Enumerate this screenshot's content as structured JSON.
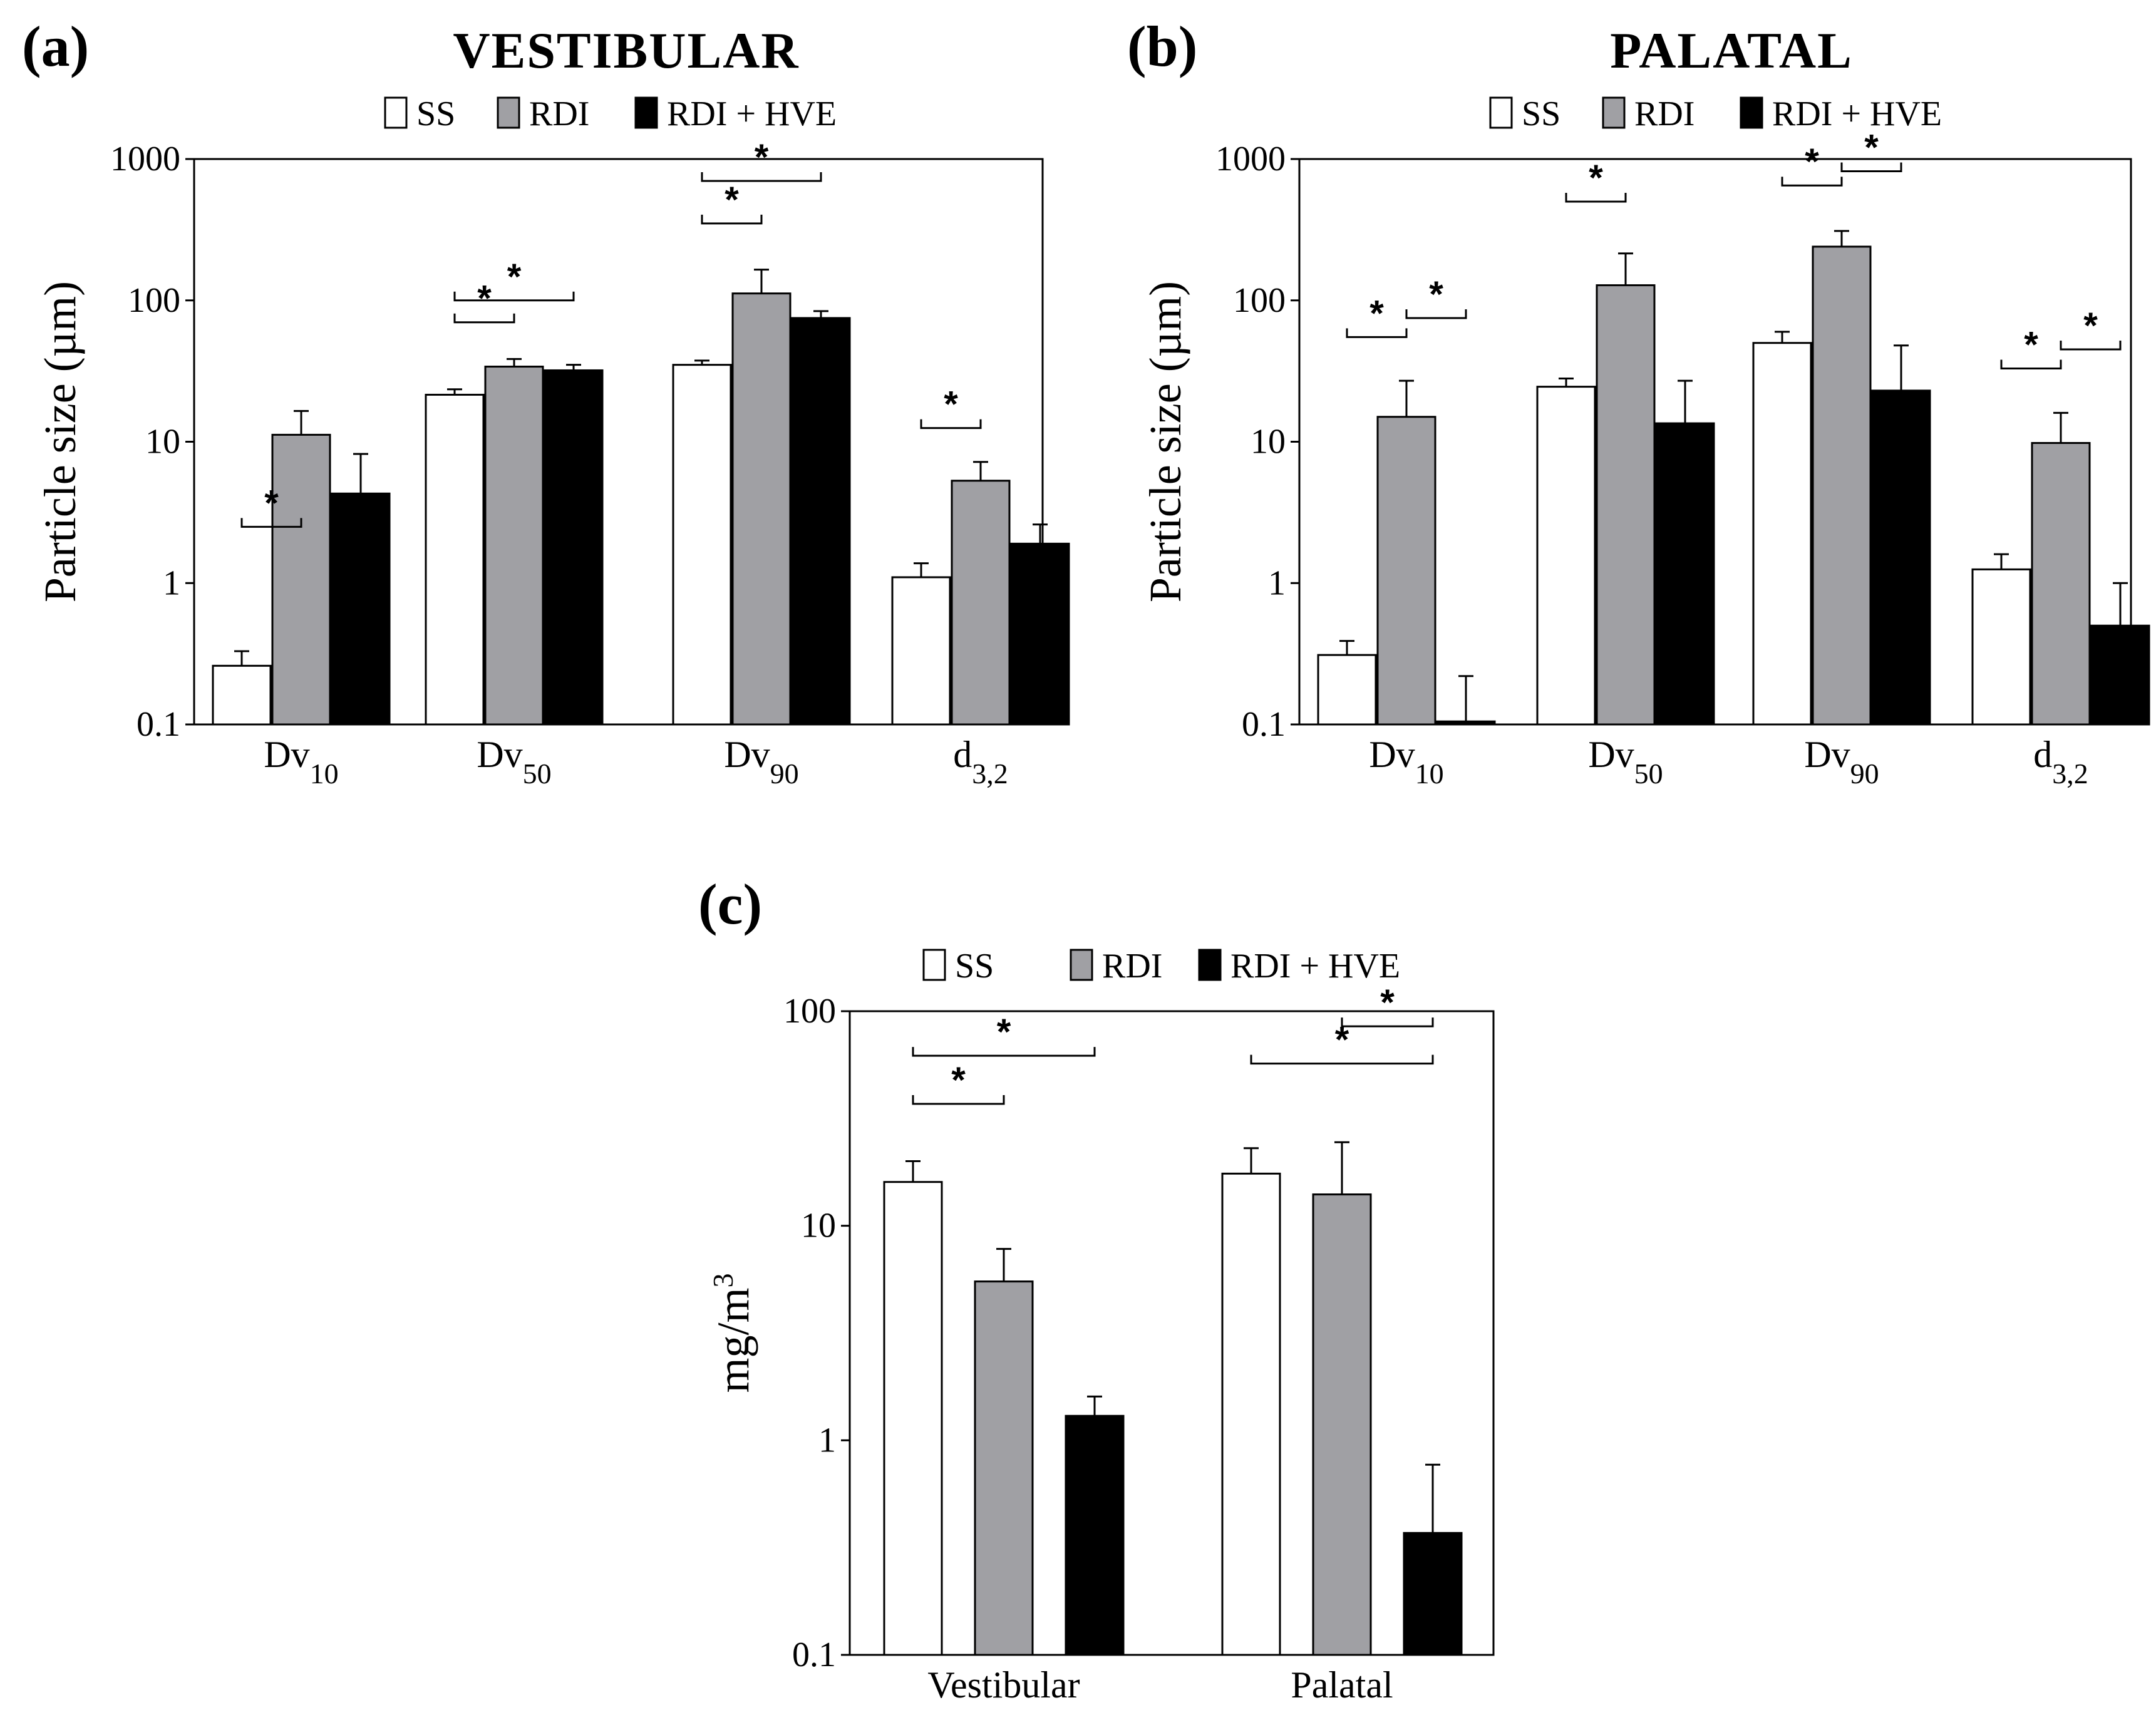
{
  "colors": {
    "SS": "#ffffff",
    "RDI": "#a0a0a4",
    "RDI + HVE": "#000000",
    "stroke": "#000000"
  },
  "chart_data": [
    {
      "panel": "(a)",
      "title": "VESTIBULAR",
      "type": "bar",
      "yscale": "log",
      "ylabel": "Particle size (µm)",
      "ylim": [
        0.1,
        1000
      ],
      "yticks": [
        "0.1",
        "1",
        "10",
        "100",
        "1000"
      ],
      "legend": [
        "SS",
        "RDI",
        "RDI + HVE"
      ],
      "categories": [
        {
          "base": "Dv",
          "sub": "10"
        },
        {
          "base": "Dv",
          "sub": "50"
        },
        {
          "base": "Dv",
          "sub": "90"
        },
        {
          "base": "d",
          "sub": "3,2"
        }
      ],
      "series": [
        {
          "name": "SS",
          "values": [
            0.26,
            21.5,
            35,
            1.1
          ],
          "errors": [
            0.33,
            23.5,
            37.5,
            1.38
          ]
        },
        {
          "name": "RDI",
          "values": [
            11.2,
            34,
            112,
            5.3
          ],
          "errors": [
            16.5,
            38.5,
            165,
            7.2
          ]
        },
        {
          "name": "RDI + HVE",
          "values": [
            4.3,
            32,
            75,
            1.9
          ],
          "errors": [
            8.2,
            35,
            84,
            2.6
          ]
        }
      ],
      "significance": [
        {
          "cat": 0,
          "from": 0,
          "to": 1,
          "level": 2.5,
          "label": "*"
        },
        {
          "cat": 1,
          "from": 0,
          "to": 1,
          "level": 70,
          "label": "*"
        },
        {
          "cat": 1,
          "from": 0,
          "to": 2,
          "level": 100,
          "label": "*"
        },
        {
          "cat": 2,
          "from": 0,
          "to": 1,
          "level": 350,
          "label": "*"
        },
        {
          "cat": 2,
          "from": 0,
          "to": 2,
          "level": 700,
          "label": "*"
        },
        {
          "cat": 3,
          "from": 0,
          "to": 1,
          "level": 12.5,
          "label": "*"
        }
      ]
    },
    {
      "panel": "(b)",
      "title": "PALATAL",
      "type": "bar",
      "yscale": "log",
      "ylabel": "Particle size (µm)",
      "ylim": [
        0.1,
        1000
      ],
      "yticks": [
        "0.1",
        "1",
        "10",
        "100",
        "1000"
      ],
      "legend": [
        "SS",
        "RDI",
        "RDI + HVE"
      ],
      "categories": [
        {
          "base": "Dv",
          "sub": "10"
        },
        {
          "base": "Dv",
          "sub": "50"
        },
        {
          "base": "Dv",
          "sub": "90"
        },
        {
          "base": "d",
          "sub": "3,2"
        }
      ],
      "series": [
        {
          "name": "SS",
          "values": [
            0.31,
            24.5,
            50,
            1.25
          ],
          "errors": [
            0.39,
            28,
            60,
            1.6
          ]
        },
        {
          "name": "RDI",
          "values": [
            15,
            128,
            240,
            9.8
          ],
          "errors": [
            27,
            215,
            310,
            16
          ]
        },
        {
          "name": "RDI + HVE",
          "values": [
            0.105,
            13.5,
            23,
            0.5
          ],
          "errors": [
            0.22,
            27,
            48,
            1.0
          ]
        }
      ],
      "significance": [
        {
          "cat": 0,
          "from": 0,
          "to": 1,
          "level": 55,
          "label": "*"
        },
        {
          "cat": 0,
          "from": 1,
          "to": 2,
          "level": 75,
          "label": "*"
        },
        {
          "cat": 1,
          "from": 0,
          "to": 1,
          "level": 500,
          "label": "*"
        },
        {
          "cat": 2,
          "from": 0,
          "to": 1,
          "level": 650,
          "label": "*"
        },
        {
          "cat": 2,
          "from": 1,
          "to": 2,
          "level": 820,
          "label": "*"
        },
        {
          "cat": 3,
          "from": 0,
          "to": 1,
          "level": 33,
          "label": "*"
        },
        {
          "cat": 3,
          "from": 1,
          "to": 2,
          "level": 45,
          "label": "*"
        }
      ]
    },
    {
      "panel": "(c)",
      "title": "",
      "type": "bar",
      "yscale": "log",
      "ylabel": "mg/m",
      "ylabel_sup": "3",
      "ylim": [
        0.1,
        100
      ],
      "yticks": [
        "0.1",
        "1",
        "10",
        "100"
      ],
      "legend": [
        "SS",
        "RDI",
        "RDI + HVE"
      ],
      "categories": [
        {
          "base": "Vestibular",
          "sub": ""
        },
        {
          "base": "Palatal",
          "sub": ""
        }
      ],
      "series": [
        {
          "name": "SS",
          "values": [
            16,
            17.5
          ],
          "errors": [
            20,
            23
          ]
        },
        {
          "name": "RDI",
          "values": [
            5.5,
            14
          ],
          "errors": [
            7.8,
            24.5
          ]
        },
        {
          "name": "RDI + HVE",
          "values": [
            1.3,
            0.37
          ],
          "errors": [
            1.6,
            0.77
          ]
        }
      ],
      "significance": [
        {
          "cat": 0,
          "from": 0,
          "to": 1,
          "level": 37,
          "label": "*"
        },
        {
          "cat": 0,
          "from": 0,
          "to": 2,
          "level": 62,
          "label": "*"
        },
        {
          "cat": 1,
          "from": 0,
          "to": 2,
          "level": 57,
          "label": "*"
        },
        {
          "cat": 1,
          "from": 1,
          "to": 2,
          "level": 85,
          "label": "*"
        }
      ]
    }
  ]
}
